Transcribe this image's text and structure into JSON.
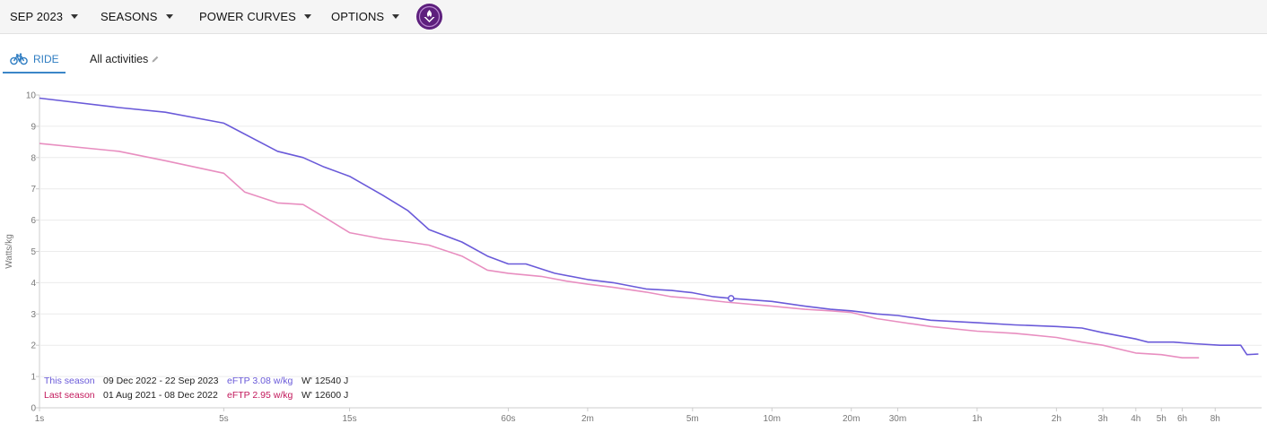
{
  "menu": {
    "month": "SEP 2023",
    "seasons": "SEASONS",
    "power_curves": "POWER CURVES",
    "options": "OPTIONS"
  },
  "tabs": {
    "ride": "RIDE",
    "all_activities": "All activities"
  },
  "colors": {
    "this_season": "#6a5ad9",
    "last_season": "#e88ec0",
    "accent": "#3b86c8"
  },
  "chart_data": {
    "type": "line",
    "title": "",
    "xlabel": "",
    "ylabel": "Watts/kg",
    "x_scale": "log",
    "ylim": [
      0,
      10
    ],
    "yticks": [
      0,
      1,
      2,
      3,
      4,
      5,
      6,
      7,
      8,
      9,
      10
    ],
    "xticks": [
      {
        "label": "1s",
        "seconds": 1
      },
      {
        "label": "5s",
        "seconds": 5
      },
      {
        "label": "15s",
        "seconds": 15
      },
      {
        "label": "60s",
        "seconds": 60
      },
      {
        "label": "2m",
        "seconds": 120
      },
      {
        "label": "5m",
        "seconds": 300
      },
      {
        "label": "10m",
        "seconds": 600
      },
      {
        "label": "20m",
        "seconds": 1200
      },
      {
        "label": "30m",
        "seconds": 1800
      },
      {
        "label": "1h",
        "seconds": 3600
      },
      {
        "label": "2h",
        "seconds": 7200
      },
      {
        "label": "3h",
        "seconds": 10800
      },
      {
        "label": "4h",
        "seconds": 14400
      },
      {
        "label": "5h",
        "seconds": 18000
      },
      {
        "label": "6h",
        "seconds": 21600
      },
      {
        "label": "8h",
        "seconds": 28800
      }
    ],
    "grid": true,
    "series": [
      {
        "name": "This season",
        "dates": "09 Dec 2022 - 22 Sep 2023",
        "eftp": "eFTP 3.08 w/kg",
        "wprime": "W' 12540 J",
        "color": "#6a5ad9",
        "points": [
          [
            1,
            9.9
          ],
          [
            2,
            9.6
          ],
          [
            3,
            9.45
          ],
          [
            5,
            9.1
          ],
          [
            8,
            8.2
          ],
          [
            10,
            8.0
          ],
          [
            12,
            7.7
          ],
          [
            15,
            7.4
          ],
          [
            20,
            6.8
          ],
          [
            25,
            6.3
          ],
          [
            30,
            5.7
          ],
          [
            40,
            5.3
          ],
          [
            50,
            4.85
          ],
          [
            60,
            4.6
          ],
          [
            70,
            4.6
          ],
          [
            90,
            4.3
          ],
          [
            120,
            4.1
          ],
          [
            150,
            4.0
          ],
          [
            200,
            3.8
          ],
          [
            250,
            3.75
          ],
          [
            300,
            3.68
          ],
          [
            360,
            3.55
          ],
          [
            420,
            3.5
          ],
          [
            600,
            3.4
          ],
          [
            800,
            3.25
          ],
          [
            1000,
            3.15
          ],
          [
            1200,
            3.1
          ],
          [
            1500,
            3.0
          ],
          [
            1800,
            2.95
          ],
          [
            2400,
            2.8
          ],
          [
            3600,
            2.72
          ],
          [
            5000,
            2.65
          ],
          [
            7200,
            2.6
          ],
          [
            9000,
            2.55
          ],
          [
            10800,
            2.4
          ],
          [
            14400,
            2.2
          ],
          [
            16000,
            2.1
          ],
          [
            20000,
            2.1
          ],
          [
            24000,
            2.05
          ],
          [
            30000,
            2.0
          ],
          [
            36000,
            2.0
          ],
          [
            38000,
            1.7
          ],
          [
            42000,
            1.72
          ]
        ]
      },
      {
        "name": "Last season",
        "dates": "01 Aug 2021 - 08 Dec 2022",
        "eftp": "eFTP 2.95 w/kg",
        "wprime": "W' 12600 J",
        "color": "#e88ec0",
        "points": [
          [
            1,
            8.45
          ],
          [
            2,
            8.2
          ],
          [
            3,
            7.9
          ],
          [
            5,
            7.5
          ],
          [
            6,
            6.9
          ],
          [
            8,
            6.55
          ],
          [
            10,
            6.5
          ],
          [
            12,
            6.1
          ],
          [
            15,
            5.6
          ],
          [
            20,
            5.4
          ],
          [
            25,
            5.3
          ],
          [
            30,
            5.2
          ],
          [
            40,
            4.85
          ],
          [
            50,
            4.4
          ],
          [
            60,
            4.3
          ],
          [
            80,
            4.2
          ],
          [
            100,
            4.05
          ],
          [
            120,
            3.95
          ],
          [
            150,
            3.85
          ],
          [
            200,
            3.7
          ],
          [
            250,
            3.55
          ],
          [
            300,
            3.5
          ],
          [
            400,
            3.38
          ],
          [
            600,
            3.25
          ],
          [
            800,
            3.15
          ],
          [
            1000,
            3.1
          ],
          [
            1200,
            3.05
          ],
          [
            1500,
            2.85
          ],
          [
            1800,
            2.75
          ],
          [
            2400,
            2.6
          ],
          [
            3600,
            2.45
          ],
          [
            5000,
            2.38
          ],
          [
            7200,
            2.25
          ],
          [
            9000,
            2.1
          ],
          [
            10800,
            2.0
          ],
          [
            14400,
            1.75
          ],
          [
            18000,
            1.7
          ],
          [
            21600,
            1.6
          ],
          [
            25000,
            1.6
          ]
        ]
      }
    ],
    "marker": {
      "seconds": 420,
      "value": 3.5
    }
  }
}
